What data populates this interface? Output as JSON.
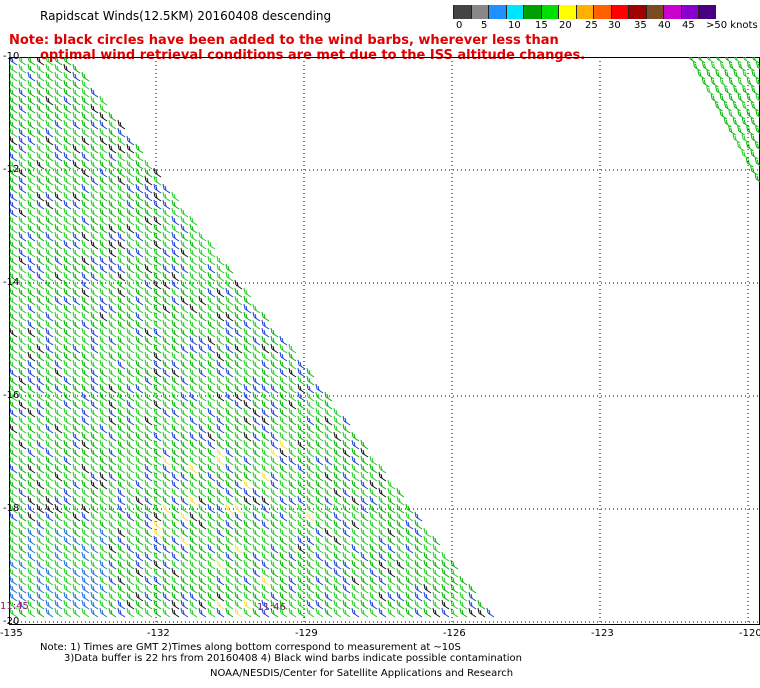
{
  "title": "Rapidscat Winds(12.5KM) 20160408 descending",
  "note": {
    "line1": "Note: black circles have been added to the wind barbs, wherever less than",
    "line2": "optimal wind retrieval conditions are met due to the ISS altitude changes."
  },
  "legend": {
    "colors": [
      "#444444",
      "#888888",
      "#1e90ff",
      "#00e5ff",
      "#00a000",
      "#00e000",
      "#ffff00",
      "#ffb000",
      "#ff6000",
      "#ff0000",
      "#a00000",
      "#7a4a20",
      "#cc00cc",
      "#8a00cc",
      "#4b0082"
    ],
    "labels": [
      "0",
      "5",
      "10",
      "15",
      "20",
      "25",
      "30",
      "35",
      "40",
      "45",
      ">50 knots"
    ]
  },
  "axes": {
    "lat_labels": [
      "-10",
      "-12",
      "-14",
      "-16",
      "-18",
      "-20"
    ],
    "lon_labels": [
      "-135",
      "-132",
      "-129",
      "-126",
      "-123",
      "-120"
    ]
  },
  "time_labels": {
    "left": "11:45",
    "mid": "11:46"
  },
  "footnote": {
    "line1": "Note: 1) Times are GMT 2)Times along bottom correspond to measurement at ~10S",
    "line2": "3)Data buffer is 22 hrs from 20160408 4) Black wind barbs indicate possible contamination"
  },
  "credit": "NOAA/NESDIS/Center for Satellite Applications and Research"
}
